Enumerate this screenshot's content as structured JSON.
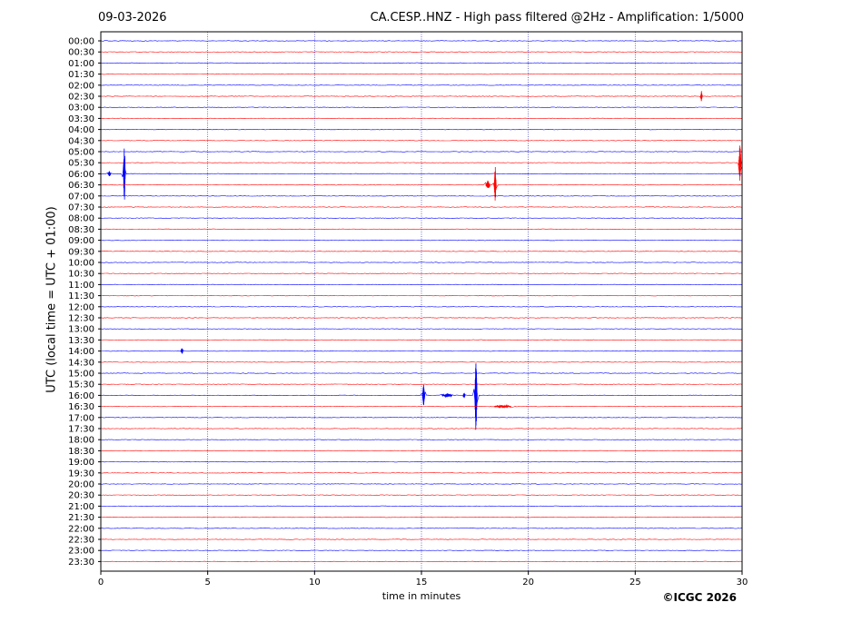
{
  "header": {
    "date": "09-03-2026",
    "title": "CA.CESP..HNZ - High pass filtered @2Hz - Amplification: 1/5000"
  },
  "footer": {
    "copyright": "©ICGC 2026"
  },
  "chart_data": {
    "type": "line",
    "xlabel": "time in minutes",
    "ylabel": "UTC (local time = UTC + 01:00)",
    "xlim": [
      0,
      30
    ],
    "xticks": [
      "0",
      "5",
      "10",
      "15",
      "20",
      "25",
      "30"
    ],
    "x_grid_lines": [
      5,
      10,
      15,
      20,
      25
    ],
    "rows": [
      "00:00",
      "00:30",
      "01:00",
      "01:30",
      "02:00",
      "02:30",
      "03:00",
      "03:30",
      "04:00",
      "04:30",
      "05:00",
      "05:30",
      "06:00",
      "06:30",
      "07:00",
      "07:30",
      "08:00",
      "08:30",
      "09:00",
      "09:30",
      "10:00",
      "10:30",
      "11:00",
      "11:30",
      "12:00",
      "12:30",
      "13:00",
      "13:30",
      "14:00",
      "14:30",
      "15:00",
      "15:30",
      "16:00",
      "16:30",
      "17:00",
      "17:30",
      "18:00",
      "18:30",
      "19:00",
      "19:30",
      "20:00",
      "20:30",
      "21:00",
      "21:30",
      "22:00",
      "22:30",
      "23:00",
      "23:30"
    ],
    "trace_colors": [
      "#0000ff",
      "#ff0000"
    ],
    "events": [
      {
        "row": "02:30",
        "minute": 28.1,
        "amplitude": 0.5,
        "width": 0.05
      },
      {
        "row": "05:30",
        "minute": 29.9,
        "amplitude": 1.9,
        "width": 0.12
      },
      {
        "row": "06:00",
        "minute": 1.1,
        "amplitude": 3.0,
        "width": 0.1
      },
      {
        "row": "06:00",
        "minute": 0.4,
        "amplitude": 0.25,
        "width": 0.15
      },
      {
        "row": "06:30",
        "minute": 18.45,
        "amplitude": 1.8,
        "width": 0.1
      },
      {
        "row": "06:30",
        "minute": 18.1,
        "amplitude": 0.4,
        "width": 0.2
      },
      {
        "row": "14:00",
        "minute": 3.8,
        "amplitude": 0.3,
        "width": 0.1
      },
      {
        "row": "16:00",
        "minute": 15.1,
        "amplitude": 1.0,
        "width": 0.12
      },
      {
        "row": "16:00",
        "minute": 17.55,
        "amplitude": 3.8,
        "width": 0.12
      },
      {
        "row": "16:00",
        "minute": 16.2,
        "amplitude": 0.2,
        "width": 0.5
      },
      {
        "row": "16:00",
        "minute": 17.0,
        "amplitude": 0.25,
        "width": 0.1
      },
      {
        "row": "16:30",
        "minute": 18.8,
        "amplitude": 0.15,
        "width": 0.8
      }
    ]
  }
}
